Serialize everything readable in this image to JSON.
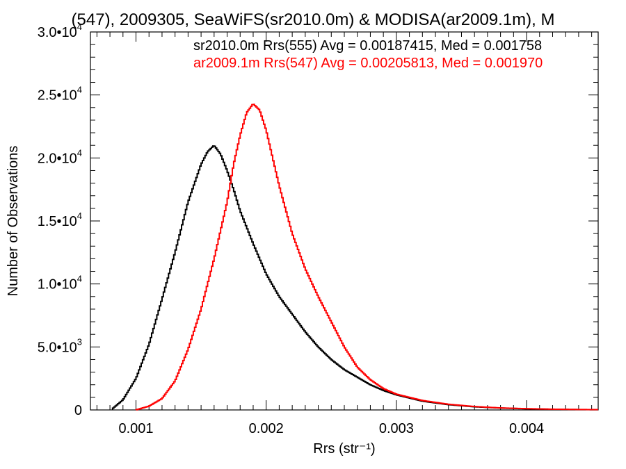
{
  "chart_data": {
    "type": "line",
    "title": "(547), 2009305, SeaWiFS(sr2010.0m) & MODISA(ar2009.1m), M",
    "xlabel": "Rrs (str⁻¹)",
    "ylabel": "Number of Observations",
    "xlim": [
      0.00065,
      0.00455
    ],
    "ylim": [
      0,
      30000
    ],
    "x_ticks": [
      {
        "value": 0.001,
        "label": "0.001"
      },
      {
        "value": 0.002,
        "label": "0.002"
      },
      {
        "value": 0.003,
        "label": "0.003"
      },
      {
        "value": 0.004,
        "label": "0.004"
      }
    ],
    "y_ticks": [
      {
        "value": 0,
        "mantissa": "0",
        "exponent": ""
      },
      {
        "value": 5000,
        "mantissa": "5.0•10",
        "exponent": "3"
      },
      {
        "value": 10000,
        "mantissa": "1.0•10",
        "exponent": "4"
      },
      {
        "value": 15000,
        "mantissa": "1.5•10",
        "exponent": "4"
      },
      {
        "value": 20000,
        "mantissa": "2.0•10",
        "exponent": "4"
      },
      {
        "value": 25000,
        "mantissa": "2.5•10",
        "exponent": "4"
      },
      {
        "value": 30000,
        "mantissa": "3.0•10",
        "exponent": "4"
      }
    ],
    "grid": false,
    "series": [
      {
        "name": "sr2010.0m Rrs(555) Avg = 0.00187415, Med = 0.001758",
        "color": "#000000",
        "x": [
          0.00082,
          0.0009,
          0.001,
          0.0011,
          0.0012,
          0.0013,
          0.0014,
          0.0015,
          0.00155,
          0.0016,
          0.00165,
          0.0017,
          0.00175,
          0.0018,
          0.0019,
          0.002,
          0.0021,
          0.0022,
          0.0023,
          0.0024,
          0.0025,
          0.0026,
          0.0027,
          0.0028,
          0.0029,
          0.003,
          0.0032,
          0.0034,
          0.0036,
          0.0038,
          0.004,
          0.0042,
          0.0044,
          0.00455
        ],
        "y": [
          100,
          800,
          2500,
          5200,
          8800,
          12500,
          16500,
          19500,
          20500,
          21000,
          20300,
          19000,
          17500,
          15800,
          13200,
          10800,
          9000,
          7600,
          6200,
          5000,
          4000,
          3200,
          2600,
          2000,
          1550,
          1200,
          700,
          420,
          250,
          150,
          90,
          50,
          30,
          20
        ]
      },
      {
        "name": "ar2009.1m Rrs(547) Avg = 0.00205813, Med = 0.001970",
        "color": "#ff0000",
        "x": [
          0.001,
          0.0011,
          0.0012,
          0.0013,
          0.0014,
          0.0015,
          0.0016,
          0.0017,
          0.00175,
          0.0018,
          0.00185,
          0.0019,
          0.00195,
          0.002,
          0.00205,
          0.0021,
          0.0022,
          0.0023,
          0.0024,
          0.0025,
          0.0026,
          0.0027,
          0.0028,
          0.0029,
          0.003,
          0.0032,
          0.0034,
          0.0036,
          0.0038,
          0.004,
          0.0042,
          0.0044,
          0.00455
        ],
        "y": [
          0,
          300,
          900,
          2300,
          4800,
          8000,
          12000,
          16500,
          19500,
          21800,
          23600,
          24300,
          23800,
          22200,
          20000,
          17800,
          14000,
          11200,
          9000,
          7000,
          5000,
          3400,
          2400,
          1700,
          1250,
          750,
          450,
          270,
          160,
          100,
          60,
          35,
          25
        ]
      }
    ]
  }
}
